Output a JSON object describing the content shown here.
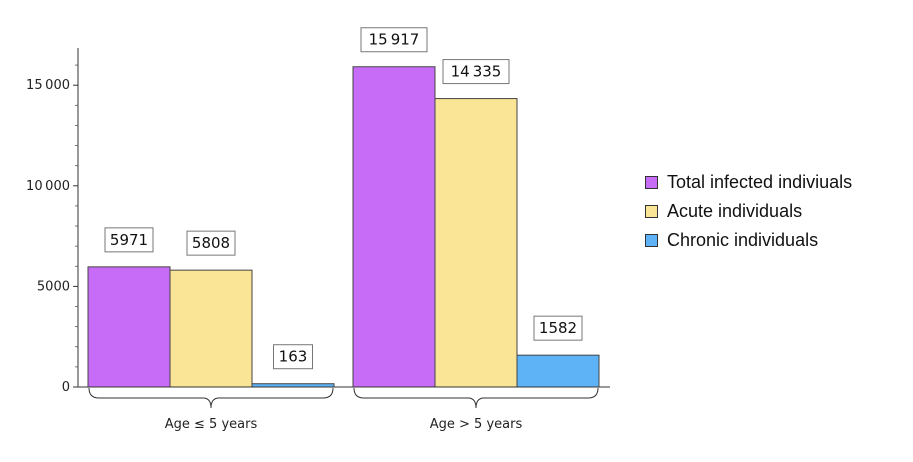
{
  "chart_data": {
    "type": "bar",
    "categories": [
      "Age ≤ 5 years",
      "Age > 5 years"
    ],
    "series": [
      {
        "name": "Total infected indiviuals",
        "values": [
          5971,
          15917
        ],
        "labels": [
          "5971",
          "15 917"
        ],
        "color": "#c76cf6"
      },
      {
        "name": "Acute individuals",
        "values": [
          5808,
          14335
        ],
        "labels": [
          "5808",
          "14 335"
        ],
        "color": "#fae596"
      },
      {
        "name": "Chronic individuals",
        "values": [
          163,
          1582
        ],
        "labels": [
          "163",
          "1582"
        ],
        "color": "#5db3f5"
      }
    ],
    "yticks": [
      0,
      5000,
      10000,
      15000
    ],
    "ytick_labels": [
      "0",
      "5000",
      "10 000",
      "15 000"
    ],
    "ylim": [
      0,
      16900
    ],
    "title": "",
    "xlabel": "",
    "ylabel": "",
    "legend_position": "right"
  }
}
